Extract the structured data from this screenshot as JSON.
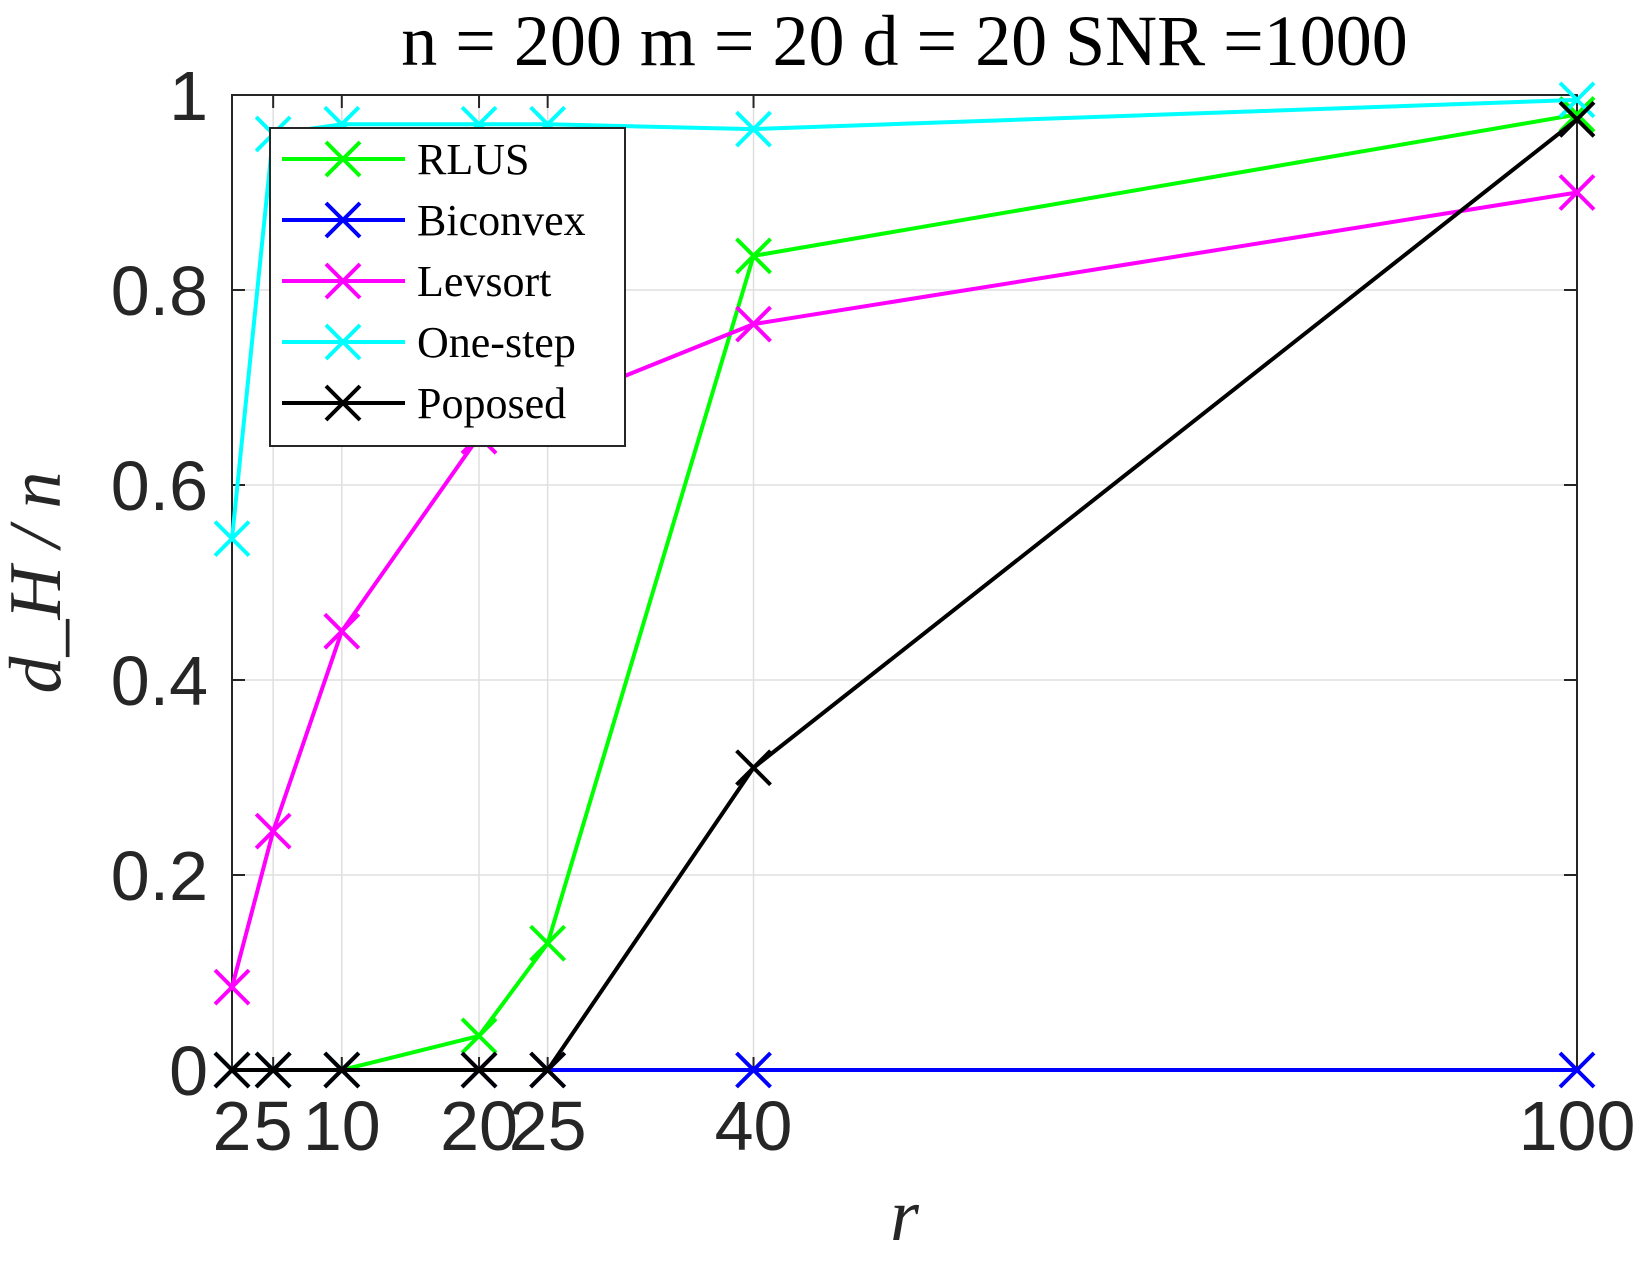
{
  "chart_data": {
    "type": "line",
    "title": "n = 200 m = 20 d = 20 SNR =1000",
    "xlabel": "r",
    "ylabel": "d_H / n",
    "x": [
      2,
      5,
      10,
      20,
      25,
      40,
      100
    ],
    "x_tick_labels": [
      "2",
      "5",
      "10",
      "20",
      "25",
      "40",
      "100"
    ],
    "y_ticks": [
      0,
      0.2,
      0.4,
      0.6,
      0.8,
      1
    ],
    "y_tick_labels": [
      "0",
      "0.2",
      "0.4",
      "0.6",
      "0.8",
      "1"
    ],
    "xlim": [
      2,
      100
    ],
    "ylim": [
      0,
      1
    ],
    "grid": true,
    "legend_position": "top-left",
    "series": [
      {
        "name": "RLUS",
        "color": "#00ff00",
        "values": [
          0,
          0,
          0,
          0.035,
          0.13,
          0.835,
          0.98
        ]
      },
      {
        "name": "Biconvex",
        "color": "#0000ff",
        "values": [
          0,
          0,
          0,
          0,
          0,
          0,
          0
        ]
      },
      {
        "name": "Levsort",
        "color": "#ff00ff",
        "values": [
          0.085,
          0.245,
          0.45,
          0.65,
          0.68,
          0.765,
          0.9
        ]
      },
      {
        "name": "One-step",
        "color": "#00ffff",
        "values": [
          0.545,
          0.96,
          0.97,
          0.97,
          0.97,
          0.965,
          0.995
        ]
      },
      {
        "name": "Poposed",
        "color": "#000000",
        "values": [
          0,
          0,
          0,
          0,
          0,
          0.31,
          0.975
        ]
      }
    ]
  }
}
